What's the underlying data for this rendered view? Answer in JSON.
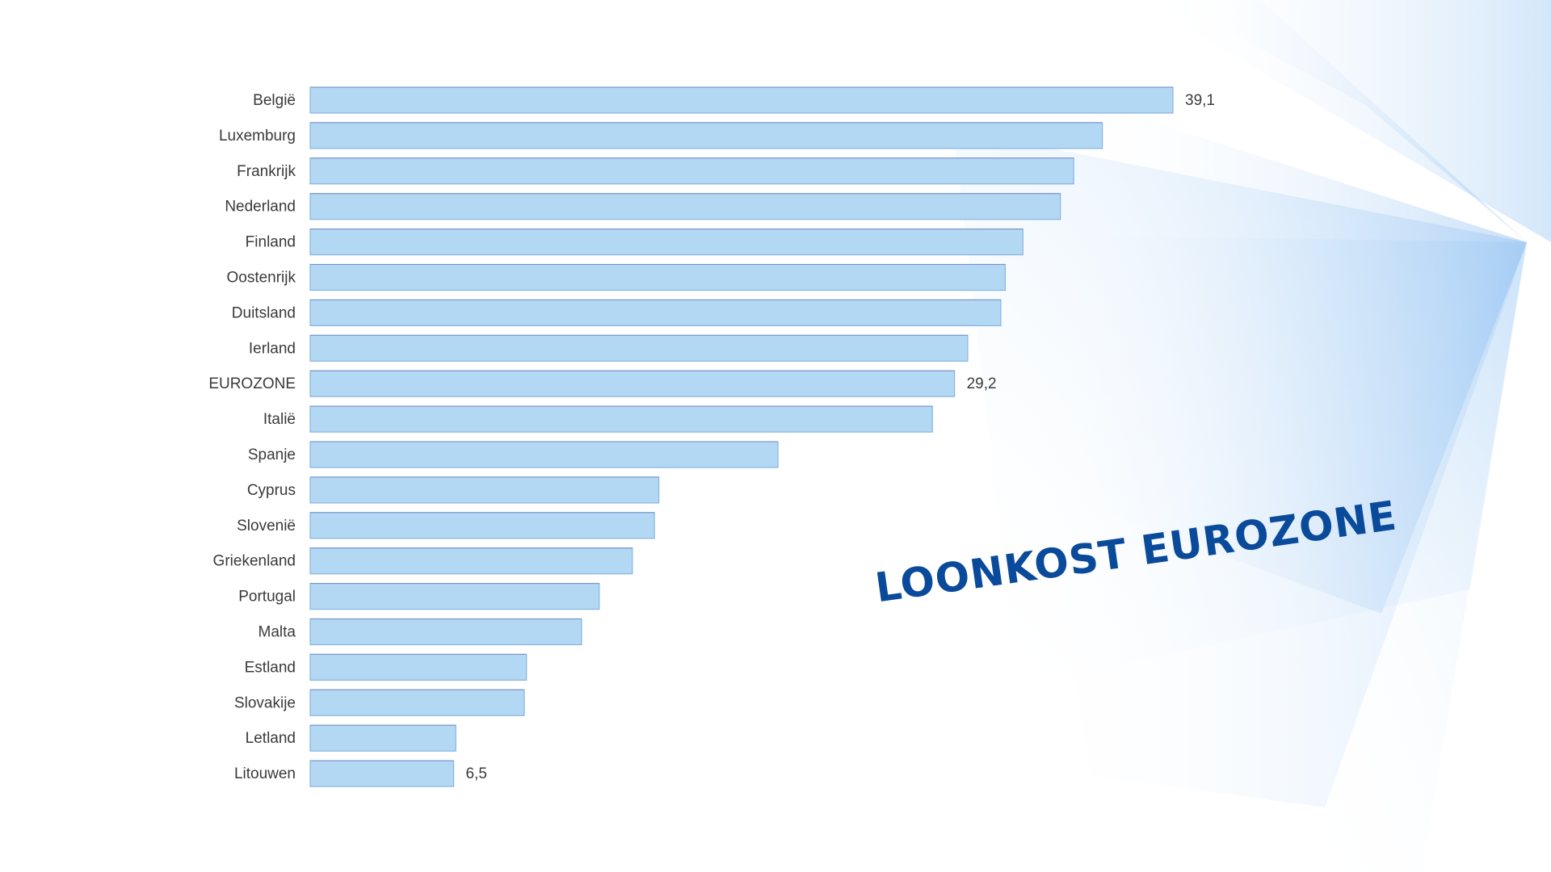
{
  "chart_data": {
    "type": "bar",
    "orientation": "horizontal",
    "title": "LOONKOST EUROZONE",
    "xlim": [
      0,
      39.1
    ],
    "grid": false,
    "categories": [
      "België",
      "Luxemburg",
      "Frankrijk",
      "Nederland",
      "Finland",
      "Oostenrijk",
      "Duitsland",
      "Ierland",
      "EUROZONE",
      "Italië",
      "Spanje",
      "Cyprus",
      "Slovenië",
      "Griekenland",
      "Portugal",
      "Malta",
      "Estland",
      "Slovakije",
      "Letland",
      "Litouwen"
    ],
    "values": [
      39.1,
      35.9,
      34.6,
      34.0,
      32.3,
      31.5,
      31.3,
      29.8,
      29.2,
      28.2,
      21.2,
      15.8,
      15.6,
      14.6,
      13.1,
      12.3,
      9.8,
      9.7,
      6.6,
      6.5
    ],
    "data_labels": [
      {
        "category": "België",
        "text": "39,1"
      },
      {
        "category": "EUROZONE",
        "text": "29,2"
      },
      {
        "category": "Litouwen",
        "text": "6,5"
      }
    ],
    "colors": {
      "bar_fill": "#b3d8f4",
      "bar_edge": "#86b4de",
      "title": "#0a4a9a"
    }
  }
}
